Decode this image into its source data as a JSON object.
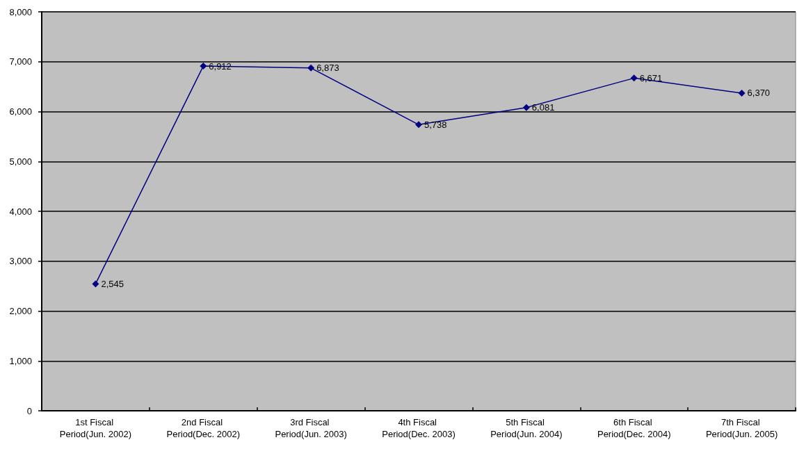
{
  "chart_data": {
    "type": "line",
    "categories": [
      "1st Fiscal Period(Jun. 2002)",
      "2nd Fiscal Period(Dec. 2002)",
      "3rd Fiscal Period(Jun. 2003)",
      "4th Fiscal Period(Dec. 2003)",
      "5th Fiscal Period(Jun. 2004)",
      "6th Fiscal Period(Dec. 2004)",
      "7th Fiscal Period(Jun. 2005)"
    ],
    "series": [
      {
        "color": "#000080",
        "values": [
          2545,
          6912,
          6873,
          5738,
          6081,
          6671,
          6370
        ],
        "value_labels": [
          "2,545",
          "6,912",
          "6,873",
          "5,738",
          "6,081",
          "6,671",
          "6,370"
        ]
      }
    ],
    "ylim": [
      0,
      8000
    ],
    "yticks": [
      0,
      {
        "value": 1000,
        "label": "1,000"
      },
      {
        "value": 2000,
        "label": "2,000"
      },
      {
        "value": 3000,
        "label": "3,000"
      },
      {
        "value": 4000,
        "label": "4,000"
      },
      {
        "value": 5000,
        "label": "5,000"
      },
      {
        "value": 6000,
        "label": "6,000"
      },
      {
        "value": 7000,
        "label": "7,000"
      },
      {
        "value": 8000,
        "label": "8,000"
      }
    ],
    "grid": "y",
    "marker": "diamond",
    "line_style": "solid"
  }
}
